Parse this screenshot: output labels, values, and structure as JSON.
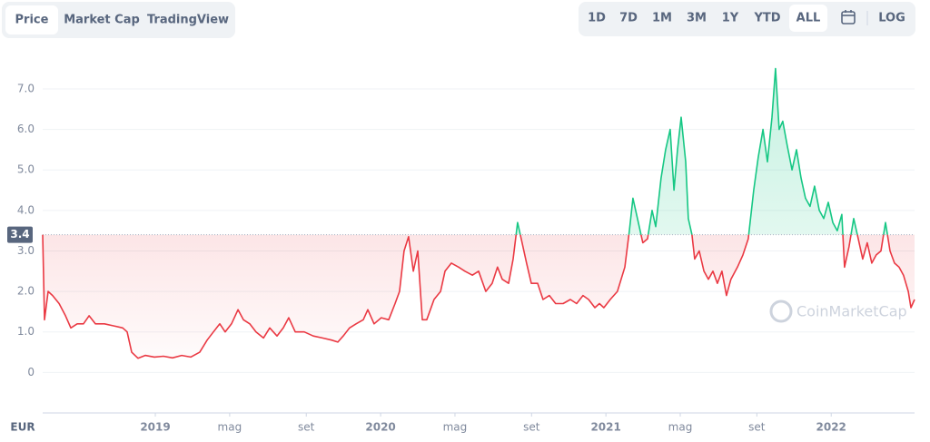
{
  "ui": {
    "tabs": [
      {
        "label": "Price",
        "selected": true
      },
      {
        "label": "Market Cap",
        "selected": false
      },
      {
        "label": "TradingView",
        "selected": false
      }
    ],
    "ranges": [
      {
        "label": "1D",
        "selected": false
      },
      {
        "label": "7D",
        "selected": false
      },
      {
        "label": "1M",
        "selected": false
      },
      {
        "label": "3M",
        "selected": false
      },
      {
        "label": "1Y",
        "selected": false
      },
      {
        "label": "YTD",
        "selected": false
      },
      {
        "label": "ALL",
        "selected": true
      }
    ],
    "log_button": "LOG"
  },
  "chart_data": {
    "type": "line",
    "currency": "EUR",
    "watermark": "CoinMarketCap",
    "price_marker": 3.4,
    "up_color": "#16c784",
    "down_color": "#ea3943",
    "x": [
      2018.5,
      2018.508,
      2018.524,
      2018.544,
      2018.573,
      2018.601,
      2018.625,
      2018.653,
      2018.681,
      2018.706,
      2018.734,
      2018.774,
      2018.814,
      2018.855,
      2018.875,
      2018.895,
      2018.923,
      2018.955,
      2018.996,
      2019.036,
      2019.076,
      2019.117,
      2019.157,
      2019.197,
      2019.23,
      2019.258,
      2019.286,
      2019.31,
      2019.338,
      2019.367,
      2019.391,
      2019.419,
      2019.447,
      2019.48,
      2019.508,
      2019.54,
      2019.568,
      2019.592,
      2019.621,
      2019.661,
      2019.701,
      2019.742,
      2019.782,
      2019.81,
      2019.834,
      2019.862,
      2019.891,
      2019.923,
      2019.943,
      2019.971,
      2020.003,
      2020.036,
      2020.064,
      2020.084,
      2020.104,
      2020.124,
      2020.145,
      2020.165,
      2020.185,
      2020.205,
      2020.237,
      2020.266,
      2020.286,
      2020.314,
      2020.346,
      2020.374,
      2020.407,
      2020.435,
      2020.467,
      2020.495,
      2020.519,
      2020.54,
      2020.568,
      2020.588,
      2020.608,
      2020.624,
      2020.648,
      2020.669,
      2020.697,
      2020.721,
      2020.749,
      2020.777,
      2020.81,
      2020.842,
      2020.87,
      2020.898,
      2020.923,
      2020.951,
      2020.971,
      2020.991,
      2021.019,
      2021.051,
      2021.084,
      2021.104,
      2021.12,
      2021.14,
      2021.164,
      2021.185,
      2021.205,
      2021.221,
      2021.245,
      2021.265,
      2021.285,
      2021.302,
      2021.318,
      2021.334,
      2021.354,
      2021.366,
      2021.382,
      2021.394,
      2021.414,
      2021.435,
      2021.455,
      2021.475,
      2021.495,
      2021.515,
      2021.535,
      2021.555,
      2021.584,
      2021.608,
      2021.632,
      2021.656,
      2021.676,
      2021.697,
      2021.717,
      2021.737,
      2021.753,
      2021.769,
      2021.785,
      2021.805,
      2021.826,
      2021.846,
      2021.866,
      2021.886,
      2021.906,
      2021.926,
      2021.947,
      2021.967,
      2021.987,
      2022.007,
      2022.027,
      2022.047,
      2022.059,
      2022.079,
      2022.1,
      2022.12,
      2022.14,
      2022.16,
      2022.18,
      2022.2,
      2022.221,
      2022.241,
      2022.261,
      2022.281,
      2022.301,
      2022.321,
      2022.342,
      2022.354,
      2022.37
    ],
    "values": [
      3.4,
      1.3,
      2.0,
      1.9,
      1.7,
      1.4,
      1.1,
      1.2,
      1.2,
      1.4,
      1.2,
      1.2,
      1.15,
      1.1,
      1.0,
      0.5,
      0.35,
      0.42,
      0.38,
      0.4,
      0.36,
      0.42,
      0.38,
      0.5,
      0.8,
      1.0,
      1.2,
      1.0,
      1.2,
      1.55,
      1.3,
      1.2,
      1.0,
      0.85,
      1.1,
      0.9,
      1.1,
      1.35,
      1.0,
      1.0,
      0.9,
      0.85,
      0.8,
      0.75,
      0.9,
      1.1,
      1.2,
      1.3,
      1.55,
      1.2,
      1.35,
      1.3,
      1.7,
      2.0,
      3.0,
      3.35,
      2.5,
      3.0,
      1.3,
      1.3,
      1.8,
      2.0,
      2.5,
      2.7,
      2.6,
      2.5,
      2.4,
      2.5,
      2.0,
      2.2,
      2.6,
      2.3,
      2.2,
      2.8,
      3.7,
      3.3,
      2.7,
      2.2,
      2.2,
      1.8,
      1.9,
      1.7,
      1.7,
      1.8,
      1.7,
      1.9,
      1.8,
      1.6,
      1.7,
      1.6,
      1.8,
      2.0,
      2.6,
      3.5,
      4.3,
      3.8,
      3.2,
      3.3,
      4.0,
      3.6,
      4.8,
      5.5,
      6.0,
      4.5,
      5.5,
      6.3,
      5.2,
      3.8,
      3.4,
      2.8,
      3.0,
      2.5,
      2.3,
      2.5,
      2.2,
      2.5,
      1.9,
      2.3,
      2.6,
      2.9,
      3.3,
      4.5,
      5.3,
      6.0,
      5.2,
      6.3,
      7.5,
      6.0,
      6.2,
      5.6,
      5.0,
      5.5,
      4.8,
      4.3,
      4.1,
      4.6,
      4.0,
      3.8,
      4.2,
      3.7,
      3.5,
      3.9,
      2.6,
      3.1,
      3.8,
      3.3,
      2.8,
      3.2,
      2.7,
      2.9,
      3.0,
      3.7,
      3.0,
      2.7,
      2.6,
      2.4,
      2.0,
      1.6,
      1.8
    ],
    "xlim": [
      2018.5,
      2022.37
    ],
    "xticks": [
      2019,
      {
        "value": 2019.33,
        "label": "mag"
      },
      {
        "value": 2019.67,
        "label": "set"
      },
      2020,
      {
        "value": 2020.33,
        "label": "mag"
      },
      {
        "value": 2020.67,
        "label": "set"
      },
      2021,
      {
        "value": 2021.33,
        "label": "mag"
      },
      {
        "value": 2021.67,
        "label": "set"
      },
      2022
    ],
    "ylim": [
      -1,
      7.85
    ],
    "yticks": [
      0,
      {
        "value": 1,
        "label": "1.0"
      },
      {
        "value": 2,
        "label": "2.0"
      },
      {
        "value": 3,
        "label": "3.0"
      },
      {
        "value": 4,
        "label": "4.0"
      },
      {
        "value": 5,
        "label": "5.0"
      },
      {
        "value": 6,
        "label": "6.0"
      },
      {
        "value": 7,
        "label": "7.0"
      }
    ],
    "grid": true
  }
}
